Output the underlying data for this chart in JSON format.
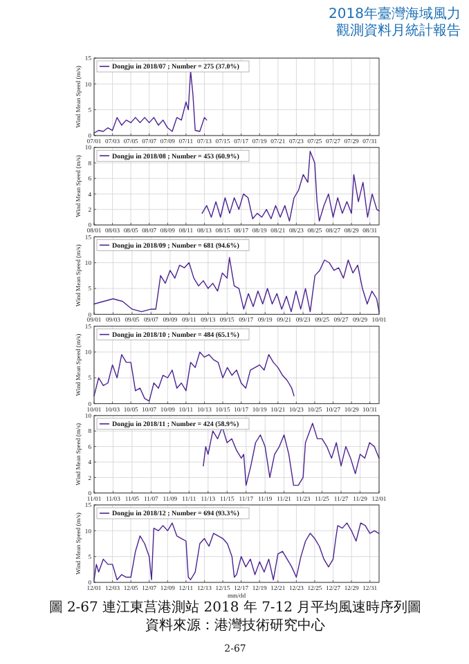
{
  "chart_data": [
    {
      "type": "line",
      "ylabel": "Wind Mean Speed (m/s)",
      "grid": true,
      "legend": "top left",
      "annotations": [
        "2018年臺灣海域風力",
        "觀測資料月統計報告"
      ],
      "xlim": [
        "2018-07-01",
        "2018-08-01"
      ],
      "ylim": [
        0,
        15
      ],
      "yticks": [
        0,
        5,
        10,
        15
      ],
      "xticks": [
        {
          "value": "2018-07-01",
          "label": "07/01"
        },
        {
          "value": "2018-07-03",
          "label": "07/03"
        },
        {
          "value": "2018-07-05",
          "label": "07/05"
        },
        {
          "value": "2018-07-07",
          "label": "07/07"
        },
        {
          "value": "2018-07-09",
          "label": "07/09"
        },
        {
          "value": "2018-07-11",
          "label": "07/11"
        },
        {
          "value": "2018-07-13",
          "label": "07/13"
        },
        {
          "value": "2018-07-15",
          "label": "07/15"
        },
        {
          "value": "2018-07-17",
          "label": "07/17"
        },
        {
          "value": "2018-07-19",
          "label": "07/19"
        },
        {
          "value": "2018-07-21",
          "label": "07/21"
        },
        {
          "value": "2018-07-23",
          "label": "07/23"
        },
        {
          "value": "2018-07-25",
          "label": "07/25"
        },
        {
          "value": "2018-07-27",
          "label": "07/27"
        },
        {
          "value": "2018-07-29",
          "label": "07/29"
        },
        {
          "value": "2018-07-31",
          "label": "07/31"
        }
      ],
      "series": [
        {
          "name": "Dongju in 2018/07 ; Number = 275 (37.0%)",
          "color": "#4b2291",
          "x": [
            "2018-07-01T00:00",
            "2018-07-01T12:00",
            "2018-07-02T00:00",
            "2018-07-02T12:00",
            "2018-07-03T00:00",
            "2018-07-03T12:00",
            "2018-07-04T00:00",
            "2018-07-04T12:00",
            "2018-07-05T00:00",
            "2018-07-05T12:00",
            "2018-07-06T00:00",
            "2018-07-06T12:00",
            "2018-07-07T00:00",
            "2018-07-07T12:00",
            "2018-07-08T00:00",
            "2018-07-08T12:00",
            "2018-07-09T00:00",
            "2018-07-09T12:00",
            "2018-07-10T00:00",
            "2018-07-10T12:00",
            "2018-07-11T00:00",
            "2018-07-11T06:00",
            "2018-07-11T12:00",
            "2018-07-11T18:00",
            "2018-07-12T00:00",
            "2018-07-12T12:00",
            "2018-07-13T00:00",
            "2018-07-13T06:00"
          ],
          "values": [
            0.5,
            1.0,
            0.8,
            1.5,
            1.0,
            3.5,
            2.0,
            3.0,
            2.5,
            3.5,
            2.5,
            3.5,
            2.5,
            3.5,
            2.0,
            3.0,
            1.5,
            0.8,
            3.5,
            3.0,
            6.5,
            5.0,
            12.5,
            8.0,
            1.0,
            0.8,
            3.5,
            3.0
          ]
        }
      ]
    },
    {
      "type": "line",
      "ylabel": "Wind Mean Speed (m/s)",
      "grid": true,
      "legend": "top left",
      "xlim": [
        "2018-08-01",
        "2018-09-01"
      ],
      "ylim": [
        0,
        10
      ],
      "yticks": [
        0,
        2,
        4,
        6,
        8,
        10
      ],
      "xticks": [
        {
          "value": "2018-08-01",
          "label": "08/01"
        },
        {
          "value": "2018-08-03",
          "label": "08/03"
        },
        {
          "value": "2018-08-05",
          "label": "08/05"
        },
        {
          "value": "2018-08-07",
          "label": "08/07"
        },
        {
          "value": "2018-08-09",
          "label": "08/09"
        },
        {
          "value": "2018-08-11",
          "label": "08/11"
        },
        {
          "value": "2018-08-13",
          "label": "08/13"
        },
        {
          "value": "2018-08-15",
          "label": "08/15"
        },
        {
          "value": "2018-08-17",
          "label": "08/17"
        },
        {
          "value": "2018-08-19",
          "label": "08/19"
        },
        {
          "value": "2018-08-21",
          "label": "08/21"
        },
        {
          "value": "2018-08-23",
          "label": "08/23"
        },
        {
          "value": "2018-08-25",
          "label": "08/25"
        },
        {
          "value": "2018-08-27",
          "label": "08/27"
        },
        {
          "value": "2018-08-29",
          "label": "08/29"
        },
        {
          "value": "2018-08-31",
          "label": "08/31"
        }
      ],
      "series": [
        {
          "name": "Dongju in 2018/08 ; Number = 453 (60.9%)",
          "color": "#4b2291",
          "x": [
            "2018-08-12T18:00",
            "2018-08-13T06:00",
            "2018-08-13T18:00",
            "2018-08-14T06:00",
            "2018-08-14T18:00",
            "2018-08-15T06:00",
            "2018-08-15T18:00",
            "2018-08-16T06:00",
            "2018-08-16T18:00",
            "2018-08-17T06:00",
            "2018-08-17T18:00",
            "2018-08-18T06:00",
            "2018-08-18T18:00",
            "2018-08-19T06:00",
            "2018-08-19T18:00",
            "2018-08-20T06:00",
            "2018-08-20T18:00",
            "2018-08-21T06:00",
            "2018-08-21T18:00",
            "2018-08-22T06:00",
            "2018-08-22T18:00",
            "2018-08-23T06:00",
            "2018-08-23T18:00",
            "2018-08-24T06:00",
            "2018-08-24T12:00",
            "2018-08-25T00:00",
            "2018-08-25T06:00",
            "2018-08-25T12:00",
            "2018-08-26T00:00",
            "2018-08-26T12:00",
            "2018-08-27T00:00",
            "2018-08-27T12:00",
            "2018-08-28T00:00",
            "2018-08-28T12:00",
            "2018-08-29T00:00",
            "2018-08-29T06:00",
            "2018-08-29T18:00",
            "2018-08-30T06:00",
            "2018-08-30T18:00",
            "2018-08-31T06:00",
            "2018-08-31T18:00",
            "2018-09-01T00:00"
          ],
          "values": [
            1.5,
            2.5,
            1.0,
            3.0,
            1.0,
            3.5,
            1.5,
            3.5,
            2.0,
            4.0,
            3.5,
            0.8,
            1.5,
            1.0,
            2.0,
            0.8,
            2.5,
            1.0,
            2.5,
            0.5,
            3.5,
            4.5,
            6.5,
            5.5,
            9.5,
            8.0,
            3.0,
            0.5,
            2.5,
            4.0,
            1.0,
            3.5,
            1.5,
            3.0,
            1.5,
            6.5,
            3.0,
            5.5,
            1.0,
            4.0,
            2.0,
            1.8
          ]
        }
      ]
    },
    {
      "type": "line",
      "ylabel": "Wind Mean Speed (m/s)",
      "grid": true,
      "legend": "top left",
      "xlim": [
        "2018-09-01",
        "2018-10-01"
      ],
      "ylim": [
        0,
        15
      ],
      "yticks": [
        0,
        5,
        10,
        15
      ],
      "xticks": [
        {
          "value": "2018-09-01",
          "label": "09/01"
        },
        {
          "value": "2018-09-03",
          "label": "09/03"
        },
        {
          "value": "2018-09-05",
          "label": "09/05"
        },
        {
          "value": "2018-09-07",
          "label": "09/07"
        },
        {
          "value": "2018-09-09",
          "label": "09/09"
        },
        {
          "value": "2018-09-11",
          "label": "09/11"
        },
        {
          "value": "2018-09-13",
          "label": "09/13"
        },
        {
          "value": "2018-09-15",
          "label": "09/15"
        },
        {
          "value": "2018-09-17",
          "label": "09/17"
        },
        {
          "value": "2018-09-19",
          "label": "09/19"
        },
        {
          "value": "2018-09-21",
          "label": "09/21"
        },
        {
          "value": "2018-09-23",
          "label": "09/23"
        },
        {
          "value": "2018-09-25",
          "label": "09/25"
        },
        {
          "value": "2018-09-27",
          "label": "09/27"
        },
        {
          "value": "2018-09-29",
          "label": "09/29"
        },
        {
          "value": "2018-10-01",
          "label": "10/01"
        }
      ],
      "series": [
        {
          "name": "Dongju in 2018/09 ; Number = 681 (94.6%)",
          "color": "#4b2291",
          "x": [
            "2018-09-01T00:00",
            "2018-09-02T00:00",
            "2018-09-03T00:00",
            "2018-09-04T00:00",
            "2018-09-05T00:00",
            "2018-09-06T00:00",
            "2018-09-07T00:00",
            "2018-09-07T12:00",
            "2018-09-08T00:00",
            "2018-09-08T12:00",
            "2018-09-09T00:00",
            "2018-09-09T12:00",
            "2018-09-10T00:00",
            "2018-09-10T12:00",
            "2018-09-11T00:00",
            "2018-09-11T12:00",
            "2018-09-12T00:00",
            "2018-09-12T12:00",
            "2018-09-13T00:00",
            "2018-09-13T12:00",
            "2018-09-14T00:00",
            "2018-09-14T12:00",
            "2018-09-15T00:00",
            "2018-09-15T06:00",
            "2018-09-15T18:00",
            "2018-09-16T06:00",
            "2018-09-16T18:00",
            "2018-09-17T06:00",
            "2018-09-17T18:00",
            "2018-09-18T06:00",
            "2018-09-18T18:00",
            "2018-09-19T06:00",
            "2018-09-19T18:00",
            "2018-09-20T06:00",
            "2018-09-20T18:00",
            "2018-09-21T06:00",
            "2018-09-21T18:00",
            "2018-09-22T06:00",
            "2018-09-22T18:00",
            "2018-09-23T06:00",
            "2018-09-23T18:00",
            "2018-09-24T06:00",
            "2018-09-24T18:00",
            "2018-09-25T06:00",
            "2018-09-25T18:00",
            "2018-09-26T06:00",
            "2018-09-26T18:00",
            "2018-09-27T06:00",
            "2018-09-27T18:00",
            "2018-09-28T06:00",
            "2018-09-28T18:00",
            "2018-09-29T06:00",
            "2018-09-29T18:00",
            "2018-09-30T06:00",
            "2018-09-30T18:00",
            "2018-10-01T00:00"
          ],
          "values": [
            2.0,
            2.5,
            3.0,
            2.5,
            1.0,
            0.5,
            1.0,
            1.0,
            7.5,
            6.0,
            8.5,
            7.0,
            9.5,
            9.0,
            10.0,
            7.0,
            5.5,
            6.5,
            5.0,
            6.0,
            4.5,
            8.0,
            7.0,
            11.0,
            5.5,
            5.0,
            1.0,
            4.0,
            1.5,
            4.5,
            2.0,
            5.0,
            2.0,
            4.0,
            1.0,
            3.5,
            0.5,
            4.5,
            1.0,
            5.0,
            0.5,
            7.5,
            8.5,
            10.5,
            10.0,
            8.5,
            9.0,
            7.0,
            10.5,
            8.0,
            9.5,
            5.0,
            2.0,
            4.5,
            3.0,
            0.5
          ]
        }
      ]
    },
    {
      "type": "line",
      "ylabel": "Wind Mean Speed (m/s)",
      "grid": true,
      "legend": "top left",
      "xlim": [
        "2018-10-01",
        "2018-11-01"
      ],
      "ylim": [
        0,
        15
      ],
      "yticks": [
        0,
        5,
        10,
        15
      ],
      "xticks": [
        {
          "value": "2018-10-01",
          "label": "10/01"
        },
        {
          "value": "2018-10-03",
          "label": "10/03"
        },
        {
          "value": "2018-10-05",
          "label": "10/05"
        },
        {
          "value": "2018-10-07",
          "label": "10/07"
        },
        {
          "value": "2018-10-09",
          "label": "10/09"
        },
        {
          "value": "2018-10-11",
          "label": "10/11"
        },
        {
          "value": "2018-10-13",
          "label": "10/13"
        },
        {
          "value": "2018-10-15",
          "label": "10/15"
        },
        {
          "value": "2018-10-17",
          "label": "10/17"
        },
        {
          "value": "2018-10-19",
          "label": "10/19"
        },
        {
          "value": "2018-10-21",
          "label": "10/21"
        },
        {
          "value": "2018-10-23",
          "label": "10/23"
        },
        {
          "value": "2018-10-25",
          "label": "10/25"
        },
        {
          "value": "2018-10-27",
          "label": "10/27"
        },
        {
          "value": "2018-10-29",
          "label": "10/29"
        },
        {
          "value": "2018-10-31",
          "label": "10/31"
        }
      ],
      "series": [
        {
          "name": "Dongju in 2018/10 ; Number = 484 (65.1%)",
          "color": "#4b2291",
          "x": [
            "2018-10-01T00:00",
            "2018-10-01T12:00",
            "2018-10-02T00:00",
            "2018-10-02T12:00",
            "2018-10-03T00:00",
            "2018-10-03T12:00",
            "2018-10-04T00:00",
            "2018-10-04T12:00",
            "2018-10-05T00:00",
            "2018-10-05T12:00",
            "2018-10-06T00:00",
            "2018-10-06T12:00",
            "2018-10-07T00:00",
            "2018-10-07T12:00",
            "2018-10-08T00:00",
            "2018-10-08T12:00",
            "2018-10-09T00:00",
            "2018-10-09T12:00",
            "2018-10-10T00:00",
            "2018-10-10T12:00",
            "2018-10-11T00:00",
            "2018-10-11T12:00",
            "2018-10-12T00:00",
            "2018-10-12T12:00",
            "2018-10-13T00:00",
            "2018-10-13T12:00",
            "2018-10-14T00:00",
            "2018-10-14T12:00",
            "2018-10-15T00:00",
            "2018-10-15T12:00",
            "2018-10-16T00:00",
            "2018-10-16T12:00",
            "2018-10-17T00:00",
            "2018-10-17T12:00",
            "2018-10-18T00:00",
            "2018-10-18T12:00",
            "2018-10-19T00:00",
            "2018-10-19T12:00",
            "2018-10-20T00:00",
            "2018-10-20T12:00",
            "2018-10-21T00:00",
            "2018-10-21T12:00",
            "2018-10-22T00:00",
            "2018-10-22T12:00",
            "2018-10-22T18:00"
          ],
          "values": [
            1.5,
            5.0,
            3.5,
            4.0,
            7.5,
            5.0,
            9.5,
            8.0,
            8.0,
            2.5,
            3.0,
            1.0,
            0.5,
            4.0,
            3.0,
            5.5,
            5.0,
            6.5,
            3.0,
            4.0,
            2.5,
            8.0,
            7.0,
            10.0,
            9.0,
            9.5,
            8.5,
            8.0,
            5.0,
            7.0,
            5.5,
            6.5,
            4.0,
            3.0,
            6.5,
            7.0,
            7.5,
            6.5,
            9.5,
            8.0,
            7.0,
            5.5,
            4.5,
            3.0,
            1.5
          ]
        }
      ]
    },
    {
      "type": "line",
      "ylabel": "Wind Mean Speed (m/s)",
      "grid": true,
      "legend": "top left",
      "xlim": [
        "2018-11-01",
        "2018-12-01"
      ],
      "ylim": [
        0,
        10
      ],
      "yticks": [
        0,
        2,
        4,
        6,
        8,
        10
      ],
      "xticks": [
        {
          "value": "2018-11-01",
          "label": "11/01"
        },
        {
          "value": "2018-11-03",
          "label": "11/03"
        },
        {
          "value": "2018-11-05",
          "label": "11/05"
        },
        {
          "value": "2018-11-07",
          "label": "11/07"
        },
        {
          "value": "2018-11-09",
          "label": "11/09"
        },
        {
          "value": "2018-11-11",
          "label": "11/11"
        },
        {
          "value": "2018-11-13",
          "label": "11/13"
        },
        {
          "value": "2018-11-15",
          "label": "11/15"
        },
        {
          "value": "2018-11-17",
          "label": "11/17"
        },
        {
          "value": "2018-11-19",
          "label": "11/19"
        },
        {
          "value": "2018-11-21",
          "label": "11/21"
        },
        {
          "value": "2018-11-23",
          "label": "11/23"
        },
        {
          "value": "2018-11-25",
          "label": "11/25"
        },
        {
          "value": "2018-11-27",
          "label": "11/27"
        },
        {
          "value": "2018-11-29",
          "label": "11/29"
        },
        {
          "value": "2018-12-01",
          "label": "12/01"
        }
      ],
      "series": [
        {
          "name": "Dongju in 2018/11 ; Number = 424 (58.9%)",
          "color": "#4b2291",
          "x": [
            "2018-11-12T12:00",
            "2018-11-12T18:00",
            "2018-11-13T00:00",
            "2018-11-13T12:00",
            "2018-11-14T00:00",
            "2018-11-14T12:00",
            "2018-11-15T00:00",
            "2018-11-15T12:00",
            "2018-11-16T00:00",
            "2018-11-16T12:00",
            "2018-11-16T18:00",
            "2018-11-17T00:00",
            "2018-11-17T12:00",
            "2018-11-18T00:00",
            "2018-11-18T12:00",
            "2018-11-19T00:00",
            "2018-11-19T12:00",
            "2018-11-20T00:00",
            "2018-11-20T12:00",
            "2018-11-21T00:00",
            "2018-11-21T12:00",
            "2018-11-22T00:00",
            "2018-11-22T12:00",
            "2018-11-23T00:00",
            "2018-11-23T06:00",
            "2018-11-24T00:00",
            "2018-11-24T12:00",
            "2018-11-25T00:00",
            "2018-11-25T12:00",
            "2018-11-26T00:00",
            "2018-11-26T12:00",
            "2018-11-27T00:00",
            "2018-11-27T12:00",
            "2018-11-28T00:00",
            "2018-11-28T12:00",
            "2018-11-29T00:00",
            "2018-11-29T12:00",
            "2018-11-30T00:00",
            "2018-11-30T12:00",
            "2018-12-01T00:00"
          ],
          "values": [
            3.5,
            6.0,
            5.0,
            8.0,
            7.0,
            8.5,
            6.5,
            7.0,
            5.5,
            4.5,
            5.0,
            1.0,
            3.5,
            6.5,
            7.5,
            6.0,
            2.0,
            5.0,
            6.0,
            7.5,
            5.0,
            1.0,
            1.0,
            2.0,
            6.5,
            9.0,
            7.0,
            7.0,
            6.0,
            4.5,
            6.5,
            3.5,
            6.0,
            4.5,
            2.5,
            5.0,
            4.5,
            6.5,
            6.0,
            4.5
          ]
        }
      ]
    },
    {
      "type": "line",
      "ylabel": "Wind Mean Speed (m/s)",
      "xlabel": "mm/dd",
      "grid": true,
      "legend": "top left",
      "annotations": [
        "圖 2-67 連江東莒港測站 2018 年 7-12 月平均風速時序列圖",
        "資料來源：港灣技術研究中心",
        "2-67"
      ],
      "xlim": [
        "2018-12-01",
        "2019-01-01"
      ],
      "ylim": [
        0,
        15
      ],
      "yticks": [
        0,
        5,
        10,
        15
      ],
      "xticks": [
        {
          "value": "2018-12-01",
          "label": "12/01"
        },
        {
          "value": "2018-12-03",
          "label": "12/03"
        },
        {
          "value": "2018-12-05",
          "label": "12/05"
        },
        {
          "value": "2018-12-07",
          "label": "12/07"
        },
        {
          "value": "2018-12-09",
          "label": "12/09"
        },
        {
          "value": "2018-12-11",
          "label": "12/11"
        },
        {
          "value": "2018-12-13",
          "label": "12/13"
        },
        {
          "value": "2018-12-15",
          "label": "12/15"
        },
        {
          "value": "2018-12-17",
          "label": "12/17"
        },
        {
          "value": "2018-12-19",
          "label": "12/19"
        },
        {
          "value": "2018-12-21",
          "label": "12/21"
        },
        {
          "value": "2018-12-23",
          "label": "12/23"
        },
        {
          "value": "2018-12-25",
          "label": "12/25"
        },
        {
          "value": "2018-12-27",
          "label": "12/27"
        },
        {
          "value": "2018-12-29",
          "label": "12/29"
        },
        {
          "value": "2018-12-31",
          "label": "12/31"
        }
      ],
      "series": [
        {
          "name": "Dongju in 2018/12 ; Number = 694 (93.3%)",
          "color": "#4b2291",
          "x": [
            "2018-12-01T00:00",
            "2018-12-01T06:00",
            "2018-12-01T12:00",
            "2018-12-02T00:00",
            "2018-12-02T12:00",
            "2018-12-03T00:00",
            "2018-12-03T12:00",
            "2018-12-04T00:00",
            "2018-12-04T12:00",
            "2018-12-05T00:00",
            "2018-12-05T12:00",
            "2018-12-06T00:00",
            "2018-12-06T12:00",
            "2018-12-07T00:00",
            "2018-12-07T06:00",
            "2018-12-07T12:00",
            "2018-12-08T00:00",
            "2018-12-08T12:00",
            "2018-12-09T00:00",
            "2018-12-09T12:00",
            "2018-12-10T00:00",
            "2018-12-10T12:00",
            "2018-12-11T00:00",
            "2018-12-11T06:00",
            "2018-12-11T12:00",
            "2018-12-12T00:00",
            "2018-12-12T12:00",
            "2018-12-13T00:00",
            "2018-12-13T12:00",
            "2018-12-14T00:00",
            "2018-12-14T12:00",
            "2018-12-15T00:00",
            "2018-12-15T12:00",
            "2018-12-16T00:00",
            "2018-12-16T06:00",
            "2018-12-16T12:00",
            "2018-12-17T00:00",
            "2018-12-17T12:00",
            "2018-12-18T00:00",
            "2018-12-18T12:00",
            "2018-12-19T00:00",
            "2018-12-19T12:00",
            "2018-12-20T00:00",
            "2018-12-20T12:00",
            "2018-12-21T00:00",
            "2018-12-21T12:00",
            "2018-12-22T00:00",
            "2018-12-22T12:00",
            "2018-12-23T00:00",
            "2018-12-23T12:00",
            "2018-12-24T00:00",
            "2018-12-24T12:00",
            "2018-12-25T00:00",
            "2018-12-25T12:00",
            "2018-12-26T00:00",
            "2018-12-26T12:00",
            "2018-12-27T00:00",
            "2018-12-27T06:00",
            "2018-12-27T12:00",
            "2018-12-28T00:00",
            "2018-12-28T12:00",
            "2018-12-29T00:00",
            "2018-12-29T12:00",
            "2018-12-30T00:00",
            "2018-12-30T12:00",
            "2018-12-31T00:00",
            "2018-12-31T12:00",
            "2018-12-31T23:00"
          ],
          "values": [
            0.5,
            3.5,
            2.0,
            4.5,
            3.5,
            3.5,
            0.5,
            1.5,
            1.0,
            1.0,
            6.0,
            9.0,
            7.5,
            5.0,
            0.5,
            10.5,
            10.0,
            11.0,
            10.0,
            11.5,
            9.0,
            8.5,
            8.0,
            1.0,
            0.5,
            2.0,
            7.5,
            8.5,
            7.0,
            9.5,
            9.0,
            8.5,
            7.5,
            5.0,
            1.0,
            1.5,
            5.0,
            3.0,
            4.5,
            1.5,
            4.0,
            2.0,
            4.5,
            0.5,
            5.5,
            6.0,
            4.5,
            3.0,
            1.0,
            5.0,
            8.0,
            9.5,
            8.5,
            7.0,
            4.5,
            3.0,
            4.5,
            8.0,
            11.0,
            10.5,
            11.5,
            10.0,
            8.0,
            11.5,
            11.0,
            9.5,
            10.0,
            9.5
          ]
        }
      ]
    }
  ]
}
